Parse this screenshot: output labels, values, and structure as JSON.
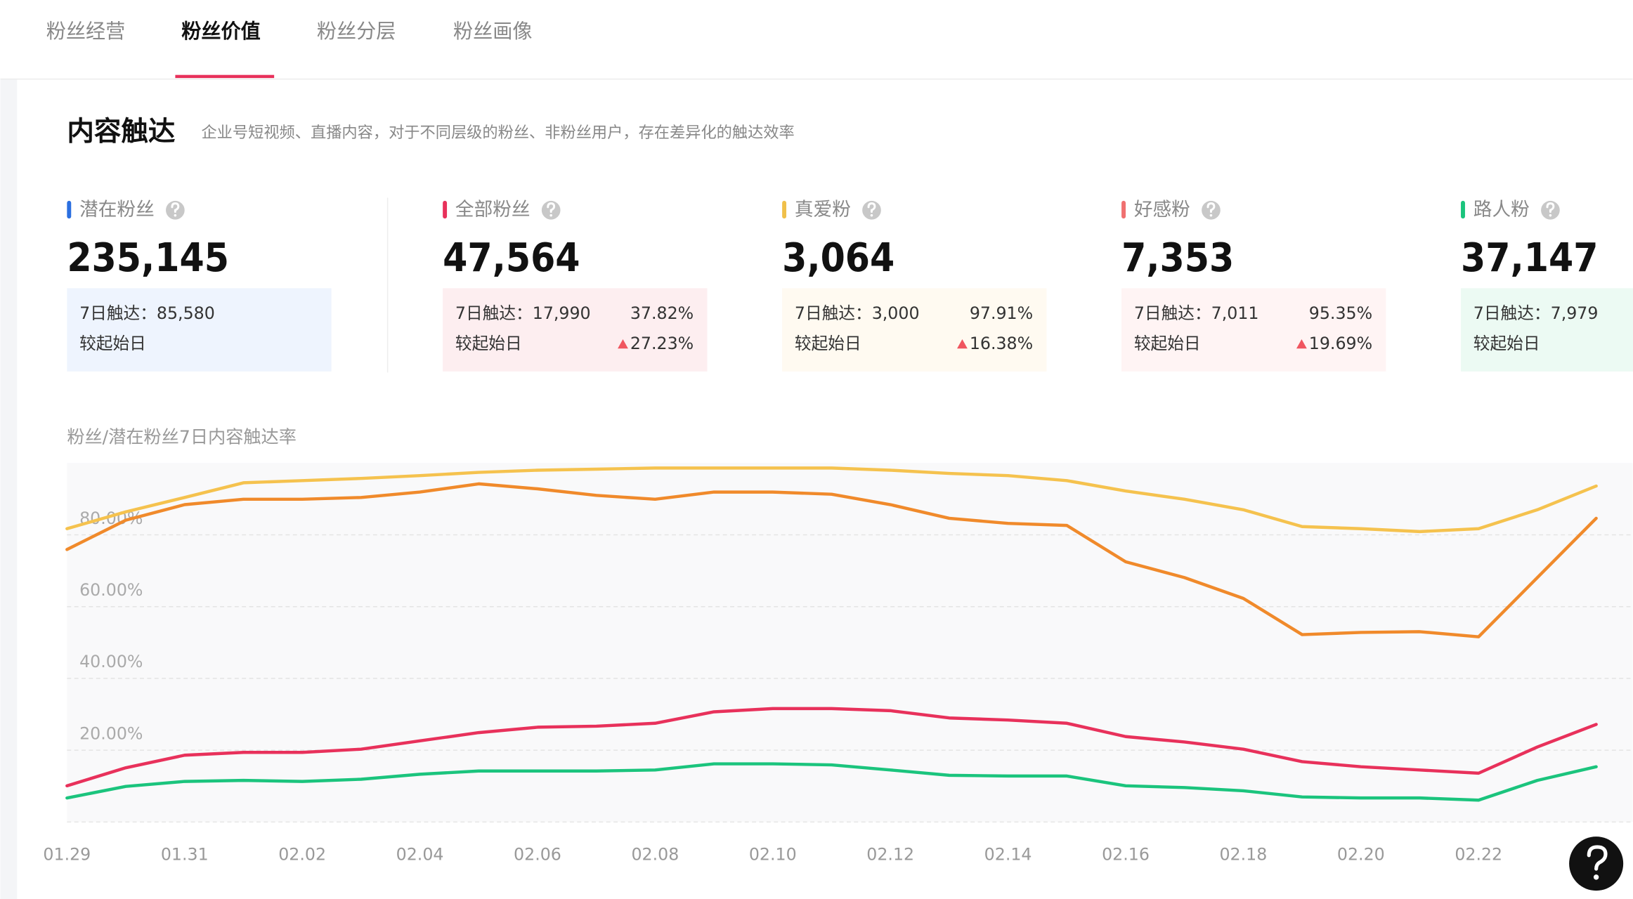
{
  "tabs": [
    "粉丝经营",
    "粉丝价值",
    "粉丝分层",
    "粉丝画像"
  ],
  "active_tab": 1,
  "section": {
    "title": "内容触达",
    "subtitle": "企业号短视频、直播内容，对于不同层级的粉丝、非粉丝用户，存在差异化的触达效率"
  },
  "cards": [
    {
      "label": "潜在粉丝",
      "color": "#2b6fe0",
      "background": "#eef4fe",
      "value": "235,145",
      "reach": "7日触达：85,580",
      "since_start": "较起始日"
    },
    {
      "label": "全部粉丝",
      "color": "#e8315b",
      "background": "#fdeef0",
      "value": "47,564",
      "reach": "7日触达：17,990",
      "ratio": "37.82%",
      "since_start": "较起始日",
      "change": "27.23%"
    },
    {
      "label": "真爱粉",
      "color": "#f0c04a",
      "background": "#fffaf1",
      "value": "3,064",
      "reach": "7日触达：3,000",
      "ratio": "97.91%",
      "since_start": "较起始日",
      "change": "16.38%"
    },
    {
      "label": "好感粉",
      "color": "#f07070",
      "background": "#fff4f4",
      "value": "7,353",
      "reach": "7日触达：7,011",
      "ratio": "95.35%",
      "since_start": "较起始日",
      "change": "19.69%"
    },
    {
      "label": "路人粉",
      "color": "#1bc47d",
      "background": "#ecfaf3",
      "value": "37,147",
      "reach": "7日触达：7,979",
      "since_start": "较起始日"
    }
  ],
  "chart_data": {
    "type": "line",
    "title": "粉丝/潜在粉丝7日内容触达率",
    "categories": [
      "01.29",
      null,
      "01.31",
      null,
      "02.02",
      null,
      "02.04",
      null,
      "02.06",
      null,
      "02.08",
      null,
      "02.10",
      null,
      "02.12",
      null,
      "02.14",
      null,
      "02.16",
      null,
      "02.18",
      null,
      "02.20",
      null,
      "02.22",
      null,
      null
    ],
    "series": [
      {
        "color": "#f5c24e",
        "values": [
          81.7,
          86.4,
          90.4,
          94.5,
          95.1,
          95.7,
          96.5,
          97.4,
          98,
          98.3,
          98.6,
          98.6,
          98.6,
          98.6,
          98,
          97.1,
          96.5,
          95.1,
          92.2,
          89.9,
          87,
          82.3,
          81.7,
          80.9,
          81.7,
          87,
          93.6
        ]
      },
      {
        "color": "#f08a2b",
        "values": [
          75.9,
          84.1,
          88.4,
          89.9,
          89.9,
          90.4,
          91.9,
          94.2,
          92.8,
          91,
          89.9,
          91.9,
          91.9,
          91.3,
          88.4,
          84.6,
          83.2,
          82.6,
          72.5,
          68.1,
          62.3,
          52.2,
          52.8,
          53.0,
          51.6,
          68.1,
          84.6
        ]
      },
      {
        "color": "#e8315b",
        "values": [
          10.1,
          15.1,
          18.6,
          19.4,
          19.4,
          20.3,
          22.6,
          24.9,
          26.4,
          26.7,
          27.5,
          30.7,
          31.6,
          31.6,
          31,
          29,
          28.4,
          27.5,
          23.8,
          22.3,
          20.3,
          16.8,
          15.4,
          14.5,
          13.6,
          20.9,
          27.2
        ]
      },
      {
        "color": "#1bc47d",
        "values": [
          6.7,
          9.9,
          11.3,
          11.6,
          11.3,
          11.9,
          13.3,
          14.2,
          14.2,
          14.2,
          14.5,
          16.2,
          16.2,
          15.9,
          14.5,
          13,
          12.8,
          12.8,
          10.1,
          9.6,
          8.7,
          7,
          6.7,
          6.7,
          6.1,
          11.6,
          15.4
        ]
      }
    ],
    "ylim": [
      0,
      100
    ],
    "yticks": [
      {
        "value": 20,
        "label": "20.00%"
      },
      {
        "value": 40,
        "label": "40.00%"
      },
      {
        "value": 60,
        "label": "60.00%"
      },
      {
        "value": 80,
        "label": "80.00%"
      }
    ],
    "grid": true
  }
}
